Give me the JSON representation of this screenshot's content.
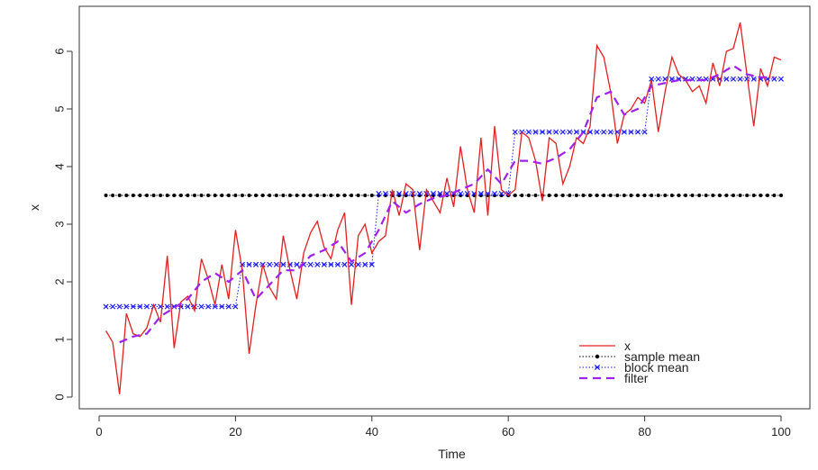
{
  "chart_data": {
    "type": "line",
    "title": "",
    "xlabel": "Time",
    "ylabel": "x",
    "xlim": [
      0,
      100
    ],
    "ylim": [
      -0.1,
      6.7
    ],
    "xticks": [
      0,
      20,
      40,
      60,
      80,
      100
    ],
    "yticks": [
      0,
      1,
      2,
      3,
      4,
      5,
      6
    ],
    "grid": false,
    "legend_position": "bottom-right",
    "series": [
      {
        "name": "x",
        "color": "#e02020",
        "style": "solid",
        "x": [
          1,
          2,
          3,
          4,
          5,
          6,
          7,
          8,
          9,
          10,
          11,
          12,
          13,
          14,
          15,
          16,
          17,
          18,
          19,
          20,
          21,
          22,
          23,
          24,
          25,
          26,
          27,
          28,
          29,
          30,
          31,
          32,
          33,
          34,
          35,
          36,
          37,
          38,
          39,
          40,
          41,
          42,
          43,
          44,
          45,
          46,
          47,
          48,
          49,
          50,
          51,
          52,
          53,
          54,
          55,
          56,
          57,
          58,
          59,
          60,
          61,
          62,
          63,
          64,
          65,
          66,
          67,
          68,
          69,
          70,
          71,
          72,
          73,
          74,
          75,
          76,
          77,
          78,
          79,
          80,
          81,
          82,
          83,
          84,
          85,
          86,
          87,
          88,
          89,
          90,
          91,
          92,
          93,
          94,
          95,
          96,
          97,
          98,
          99,
          100
        ],
        "y": [
          1.15,
          0.95,
          0.05,
          1.45,
          1.1,
          1.05,
          1.2,
          1.6,
          1.3,
          2.45,
          0.85,
          1.65,
          1.75,
          1.5,
          2.4,
          2.05,
          1.6,
          2.3,
          1.7,
          2.9,
          2.2,
          0.75,
          1.6,
          2.3,
          1.9,
          1.7,
          2.8,
          2.2,
          1.7,
          2.5,
          2.85,
          3.05,
          2.6,
          2.4,
          2.9,
          3.2,
          1.6,
          2.8,
          3.0,
          2.5,
          2.7,
          2.8,
          3.6,
          3.15,
          3.7,
          3.6,
          2.55,
          3.6,
          3.4,
          3.2,
          3.8,
          3.3,
          4.35,
          3.6,
          3.2,
          4.5,
          3.15,
          4.7,
          3.6,
          3.5,
          3.6,
          4.6,
          4.5,
          4.1,
          3.4,
          4.5,
          4.4,
          3.7,
          4.0,
          4.5,
          4.4,
          4.7,
          6.1,
          5.9,
          5.3,
          4.4,
          4.9,
          5.0,
          5.2,
          5.1,
          5.5,
          4.6,
          5.3,
          5.9,
          5.6,
          5.5,
          5.3,
          5.4,
          5.1,
          5.8,
          5.4,
          6.0,
          6.05,
          6.5,
          5.6,
          4.7,
          5.7,
          5.4,
          5.9,
          5.85
        ]
      },
      {
        "name": "sample mean",
        "color": "#000000",
        "style": "dotted",
        "marker": "dot",
        "constant_y": 3.5,
        "x_range": [
          1,
          100
        ]
      },
      {
        "name": "block mean",
        "color": "#1a1aff",
        "style": "dotted",
        "marker": "x",
        "blocks": [
          {
            "x_start": 1,
            "x_end": 20,
            "y": 1.57
          },
          {
            "x_start": 21,
            "x_end": 40,
            "y": 2.3
          },
          {
            "x_start": 41,
            "x_end": 60,
            "y": 3.53
          },
          {
            "x_start": 61,
            "x_end": 80,
            "y": 4.6
          },
          {
            "x_start": 81,
            "x_end": 100,
            "y": 5.52
          }
        ]
      },
      {
        "name": "filter",
        "color": "#a020f0",
        "style": "dashed",
        "x": [
          3,
          5,
          7,
          9,
          11,
          13,
          15,
          17,
          19,
          21,
          23,
          25,
          27,
          29,
          31,
          33,
          35,
          37,
          39,
          41,
          43,
          45,
          47,
          49,
          51,
          53,
          55,
          57,
          59,
          61,
          63,
          65,
          67,
          69,
          71,
          73,
          75,
          77,
          79,
          81,
          83,
          85,
          87,
          89,
          91,
          93,
          95,
          97,
          99
        ],
        "y": [
          0.95,
          1.05,
          1.1,
          1.4,
          1.55,
          1.7,
          2.0,
          2.15,
          2.0,
          2.2,
          1.7,
          1.95,
          2.2,
          2.2,
          2.45,
          2.55,
          2.7,
          2.35,
          2.5,
          2.9,
          3.4,
          3.2,
          3.35,
          3.45,
          3.5,
          3.6,
          3.7,
          3.95,
          3.7,
          4.1,
          4.1,
          4.05,
          4.15,
          4.3,
          4.6,
          5.2,
          5.3,
          4.9,
          5.0,
          5.4,
          5.45,
          5.5,
          5.5,
          5.5,
          5.6,
          5.75,
          5.6,
          5.55,
          5.55
        ]
      }
    ]
  }
}
